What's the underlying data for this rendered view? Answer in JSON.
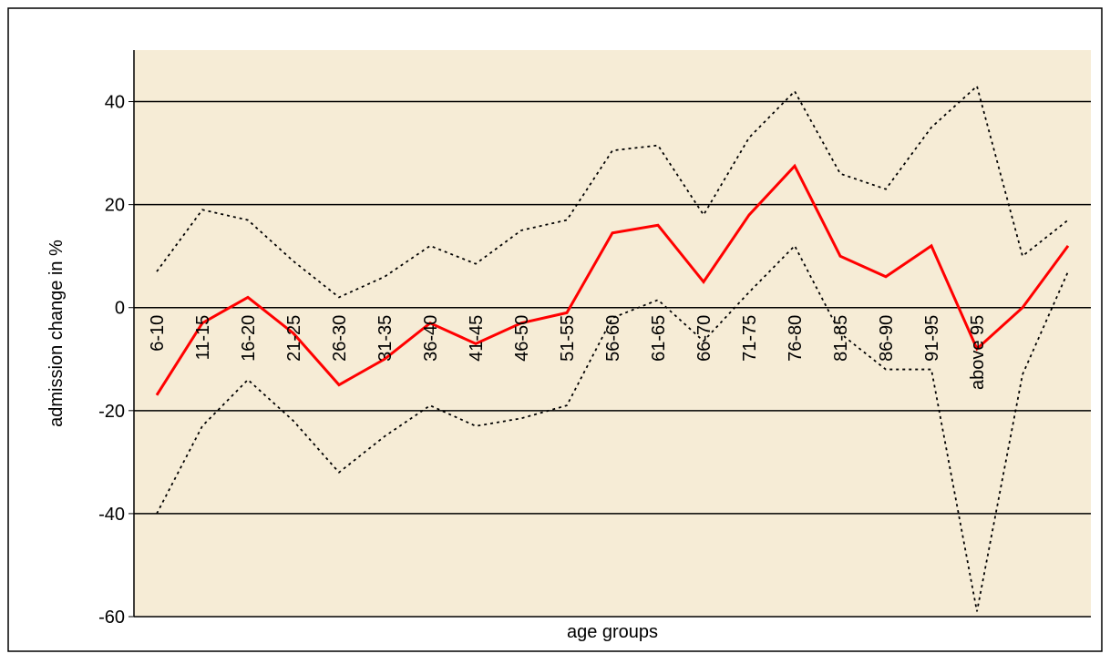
{
  "chart_data": {
    "type": "line",
    "x_label": "age groups",
    "y_label": "admission change in %",
    "categories": [
      "6-10",
      "11-15",
      "16-20",
      "21-25",
      "26-30",
      "31-35",
      "36-40",
      "41-45",
      "46-50",
      "51-55",
      "56-60",
      "61-65",
      "66-70",
      "71-75",
      "76-80",
      "81-85",
      "86-90",
      "91-95",
      "above 95",
      null,
      null
    ],
    "series": [
      {
        "color": "#ff0000",
        "style": "solid",
        "values": [
          -17,
          -3,
          2,
          -5,
          -15,
          -10,
          -3,
          -7,
          -3,
          -1,
          14.5,
          16,
          5,
          18,
          27.5,
          10,
          6,
          12,
          -8,
          0,
          12
        ]
      },
      {
        "color": "#000000",
        "style": "dotted",
        "values": [
          7,
          19,
          17,
          9,
          2,
          6,
          12,
          8.5,
          15,
          17,
          30.5,
          31.5,
          18,
          33,
          42,
          26,
          23,
          35,
          43,
          10,
          17
        ]
      },
      {
        "color": "#000000",
        "style": "dotted",
        "values": [
          -40,
          -23,
          -14,
          -22,
          -32,
          -25,
          -19,
          -23,
          -21.5,
          -19,
          -2,
          1.5,
          -6.5,
          3,
          12,
          -5,
          -12,
          -12,
          -59,
          -13,
          7
        ]
      }
    ],
    "ylim": [
      -60,
      50
    ],
    "yticks": [
      -60,
      -40,
      -20,
      0,
      20,
      40
    ],
    "grid": true
  }
}
